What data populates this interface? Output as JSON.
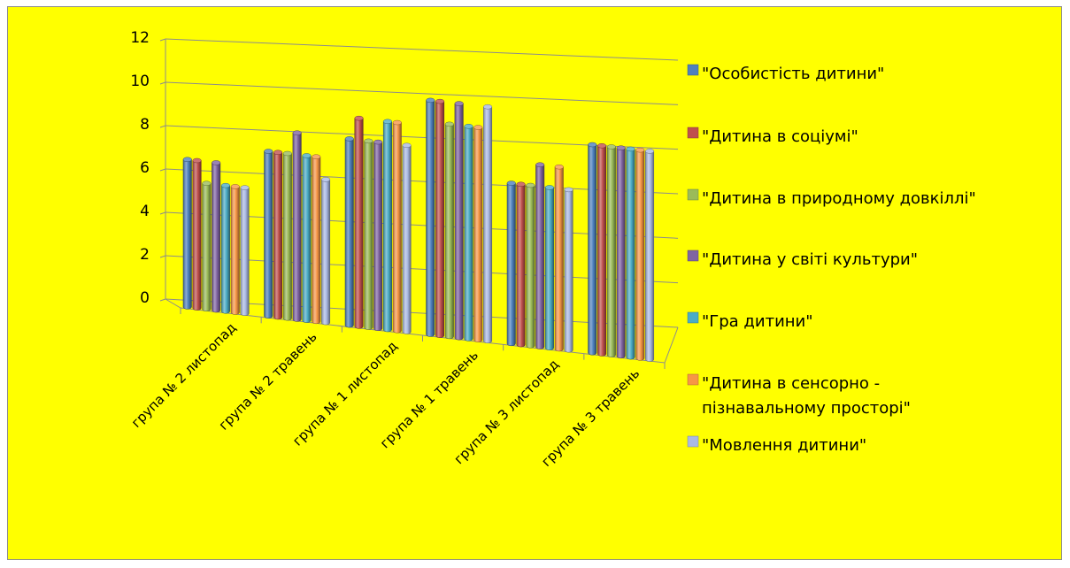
{
  "chart_data": {
    "type": "bar",
    "title": "",
    "xlabel": "",
    "ylabel": "",
    "ylim": [
      0,
      12
    ],
    "yticks": [
      0,
      2,
      4,
      6,
      8,
      10,
      12
    ],
    "categories": [
      "група № 2 листопад",
      "група № 2 травень",
      "група № 1 листопад",
      "група № 1 травень",
      "група № 3 листопад",
      "група № 3 травень"
    ],
    "series": [
      {
        "name": "\"Особистість дитини\"",
        "values": [
          6.8,
          7.6,
          8.6,
          10.8,
          7.4,
          9.6
        ]
      },
      {
        "name": "\"Дитина в соціумі\"",
        "values": [
          6.8,
          7.6,
          9.6,
          10.8,
          7.4,
          9.6
        ]
      },
      {
        "name": "\"Дитина в природному довкіллі\"",
        "values": [
          5.8,
          7.6,
          8.6,
          9.8,
          7.4,
          9.6
        ]
      },
      {
        "name": "\"Дитина у світі культури\"",
        "values": [
          6.8,
          8.6,
          8.6,
          10.8,
          8.4,
          9.6
        ]
      },
      {
        "name": "\"Гра дитини\"",
        "values": [
          5.8,
          7.6,
          9.6,
          9.8,
          7.4,
          9.6
        ]
      },
      {
        "name": "\"Дитина в сенсорно - пізнавальному просторі\"",
        "values": [
          5.8,
          7.6,
          9.6,
          9.8,
          8.4,
          9.6
        ]
      },
      {
        "name": "\"Мовлення дитини\"",
        "values": [
          5.8,
          6.6,
          8.6,
          10.8,
          7.4,
          9.6
        ]
      }
    ],
    "legend": {
      "position": "right",
      "lines": [
        [
          "\"Особистість дитини\""
        ],
        [
          "\"Дитина в соціумі\""
        ],
        [
          "\"Дитина в природному довкіллі\""
        ],
        [
          "\"Дитина у світі культури\""
        ],
        [
          "\"Гра дитини\""
        ],
        [
          "\"Дитина в сенсорно -",
          "пізнавальному просторі\""
        ],
        [
          "\"Мовлення дитини\""
        ]
      ]
    },
    "colors": [
      "#4f81bd",
      "#c0504d",
      "#9bbb59",
      "#8064a2",
      "#4bacc6",
      "#f79646",
      "#aab9e3"
    ],
    "background": "#ffff00",
    "grid": true
  }
}
